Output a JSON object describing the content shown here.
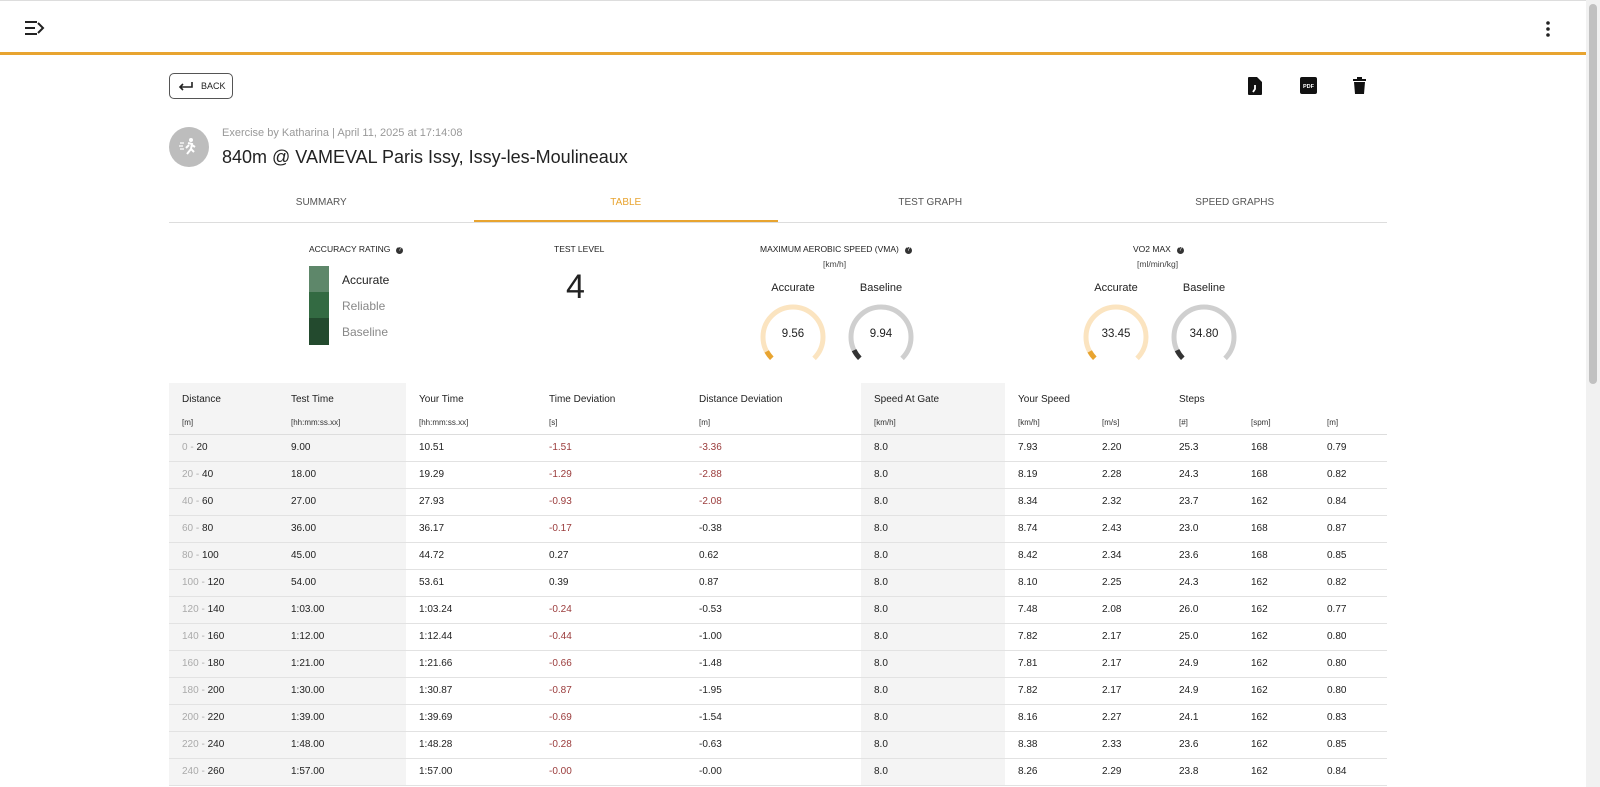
{
  "header": {
    "menu_icon": "menu-arrow-icon",
    "more_icon": "more-vert-icon"
  },
  "toolbar": {
    "back_label": "BACK",
    "export_icon": "file-export-icon",
    "pdf_icon": "pdf-icon",
    "pdf_text": "PDF",
    "delete_icon": "trash-icon"
  },
  "exercise": {
    "meta": "Exercise by Katharina | April 11, 2025 at 17:14:08",
    "title": "840m @ VAMEVAL Paris Issy, Issy-les-Moulineaux",
    "avatar_icon": "runner-icon"
  },
  "tabs": [
    {
      "label": "SUMMARY"
    },
    {
      "label": "TABLE",
      "active": true
    },
    {
      "label": "TEST GRAPH"
    },
    {
      "label": "SPEED GRAPHS"
    }
  ],
  "accuracy": {
    "title": "ACCURACY RATING",
    "levels": [
      {
        "label": "Accurate",
        "color": "#5e876a"
      },
      {
        "label": "Reliable",
        "color": "#336a42"
      },
      {
        "label": "Baseline",
        "color": "#234a2e"
      }
    ]
  },
  "test_level": {
    "title": "TEST LEVEL",
    "value": "4"
  },
  "vma": {
    "title": "MAXIMUM AEROBIC SPEED (VMA)",
    "unit": "[km/h]",
    "accurate_label": "Accurate",
    "baseline_label": "Baseline",
    "accurate": "9.56",
    "baseline": "9.94",
    "accurate_fill": 0.06,
    "baseline_fill": 0.07
  },
  "vo2": {
    "title": "VO2 MAX",
    "unit": "[ml/min/kg]",
    "accurate_label": "Accurate",
    "baseline_label": "Baseline",
    "accurate": "33.45",
    "baseline": "34.80",
    "accurate_fill": 0.06,
    "baseline_fill": 0.07
  },
  "colors": {
    "accent": "#e8a430",
    "accent_light": "#fbe4c0",
    "gray_track": "#cfcfcf",
    "dark": "#333333",
    "negative": "#9a3b3b"
  },
  "table": {
    "headers": [
      "Distance",
      "Test Time",
      "Your Time",
      "Time Deviation",
      "Distance Deviation",
      "Speed At Gate",
      "Your Speed",
      "",
      "Steps",
      "",
      ""
    ],
    "units": [
      "[m]",
      "[hh:mm:ss.xx]",
      "[hh:mm:ss.xx]",
      "[s]",
      "[m]",
      "[km/h]",
      "[km/h]",
      "[m/s]",
      "[#]",
      "[spm]",
      "[m]"
    ],
    "rows": [
      [
        "0",
        "20",
        "9.00",
        "10.51",
        "-1.51",
        "-3.36",
        "8.0",
        "7.93",
        "2.20",
        "25.3",
        "168",
        "0.79"
      ],
      [
        "20",
        "40",
        "18.00",
        "19.29",
        "-1.29",
        "-2.88",
        "8.0",
        "8.19",
        "2.28",
        "24.3",
        "168",
        "0.82"
      ],
      [
        "40",
        "60",
        "27.00",
        "27.93",
        "-0.93",
        "-2.08",
        "8.0",
        "8.34",
        "2.32",
        "23.7",
        "162",
        "0.84"
      ],
      [
        "60",
        "80",
        "36.00",
        "36.17",
        "-0.17",
        "-0.38",
        "8.0",
        "8.74",
        "2.43",
        "23.0",
        "168",
        "0.87"
      ],
      [
        "80",
        "100",
        "45.00",
        "44.72",
        "0.27",
        "0.62",
        "8.0",
        "8.42",
        "2.34",
        "23.6",
        "168",
        "0.85"
      ],
      [
        "100",
        "120",
        "54.00",
        "53.61",
        "0.39",
        "0.87",
        "8.0",
        "8.10",
        "2.25",
        "24.3",
        "162",
        "0.82"
      ],
      [
        "120",
        "140",
        "1:03.00",
        "1:03.24",
        "-0.24",
        "-0.53",
        "8.0",
        "7.48",
        "2.08",
        "26.0",
        "162",
        "0.77"
      ],
      [
        "140",
        "160",
        "1:12.00",
        "1:12.44",
        "-0.44",
        "-1.00",
        "8.0",
        "7.82",
        "2.17",
        "25.0",
        "162",
        "0.80"
      ],
      [
        "160",
        "180",
        "1:21.00",
        "1:21.66",
        "-0.66",
        "-1.48",
        "8.0",
        "7.81",
        "2.17",
        "24.9",
        "162",
        "0.80"
      ],
      [
        "180",
        "200",
        "1:30.00",
        "1:30.87",
        "-0.87",
        "-1.95",
        "8.0",
        "7.82",
        "2.17",
        "24.9",
        "162",
        "0.80"
      ],
      [
        "200",
        "220",
        "1:39.00",
        "1:39.69",
        "-0.69",
        "-1.54",
        "8.0",
        "8.16",
        "2.27",
        "24.1",
        "162",
        "0.83"
      ],
      [
        "220",
        "240",
        "1:48.00",
        "1:48.28",
        "-0.28",
        "-0.63",
        "8.0",
        "8.38",
        "2.33",
        "23.6",
        "162",
        "0.85"
      ],
      [
        "240",
        "260",
        "1:57.00",
        "1:57.00",
        "-0.00",
        "-0.00",
        "8.0",
        "8.26",
        "2.29",
        "23.8",
        "162",
        "0.84"
      ]
    ]
  }
}
